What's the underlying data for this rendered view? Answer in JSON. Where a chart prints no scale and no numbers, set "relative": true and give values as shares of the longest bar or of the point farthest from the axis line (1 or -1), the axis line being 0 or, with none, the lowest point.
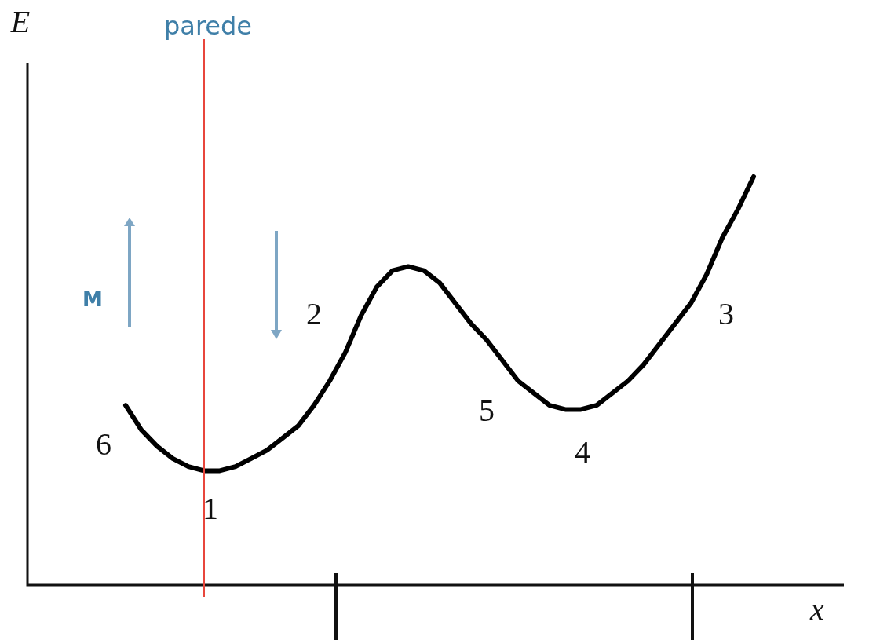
{
  "chart_data": {
    "type": "line",
    "relative": true,
    "xlabel": "x",
    "marker": "none",
    "line_style": "solid",
    "categories": [
      null,
      null,
      null,
      null,
      null,
      null,
      null,
      null,
      null,
      null,
      null,
      null,
      null,
      null,
      null,
      null,
      null,
      null,
      null,
      null,
      null,
      null,
      null,
      null,
      null,
      null,
      null,
      null,
      null,
      null,
      null,
      null,
      null,
      null,
      null,
      null,
      null,
      null,
      null,
      null,
      null
    ],
    "series": [
      {
        "color": "#000000",
        "values": [
          0.44,
          0.38,
          0.34,
          0.31,
          0.29,
          0.28,
          0.28,
          0.29,
          0.31,
          0.33,
          0.36,
          0.39,
          0.44,
          0.5,
          0.57,
          0.66,
          0.73,
          0.77,
          0.78,
          0.77,
          0.74,
          0.69,
          0.64,
          0.6,
          0.55,
          0.5,
          0.47,
          0.44,
          0.43,
          0.43,
          0.44,
          0.47,
          0.5,
          0.54,
          0.59,
          0.64,
          0.69,
          0.76,
          0.85,
          0.92,
          1
        ]
      }
    ],
    "annotations": [
      "1",
      "2",
      "3",
      "4",
      "5",
      "6",
      "M",
      "E",
      "parede"
    ]
  }
}
